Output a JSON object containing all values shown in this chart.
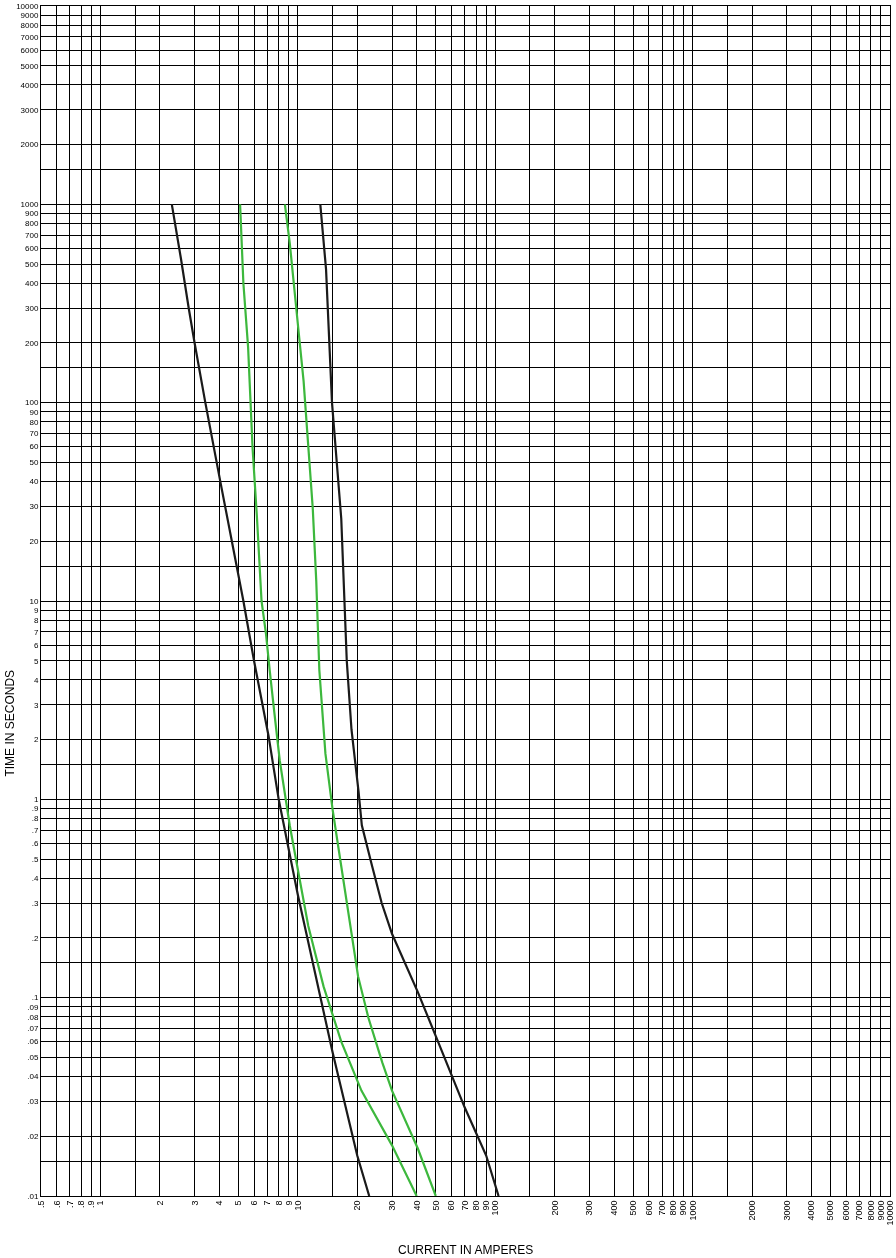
{
  "chart_data": {
    "type": "line",
    "xlabel": "CURRENT IN AMPERES",
    "ylabel": "TIME IN SECONDS",
    "log": "xy",
    "grid": true,
    "xlim": [
      0.5,
      10000
    ],
    "ylim": [
      0.01,
      10000
    ],
    "xticks": [
      {
        "value": 0.5,
        "label": ".5"
      },
      {
        "value": 0.6,
        "label": ".6"
      },
      {
        "value": 0.7,
        "label": ".7"
      },
      {
        "value": 0.8,
        "label": ".8"
      },
      {
        "value": 0.9,
        "label": ".9"
      },
      1,
      {
        "value": 1.5,
        "label": null
      },
      2,
      3,
      4,
      5,
      6,
      7,
      8,
      9,
      10,
      {
        "value": 15,
        "label": null
      },
      20,
      30,
      40,
      50,
      60,
      70,
      80,
      90,
      100,
      {
        "value": 150,
        "label": null
      },
      200,
      300,
      400,
      500,
      600,
      700,
      800,
      900,
      1000,
      {
        "value": 1500,
        "label": null
      },
      2000,
      3000,
      4000,
      5000,
      6000,
      7000,
      8000,
      9000,
      10000
    ],
    "yticks": [
      {
        "value": 0.01,
        "label": ".01"
      },
      {
        "value": 0.015,
        "label": null
      },
      {
        "value": 0.02,
        "label": ".02"
      },
      {
        "value": 0.03,
        "label": ".03"
      },
      {
        "value": 0.04,
        "label": ".04"
      },
      {
        "value": 0.05,
        "label": ".05"
      },
      {
        "value": 0.06,
        "label": ".06"
      },
      {
        "value": 0.07,
        "label": ".07"
      },
      {
        "value": 0.08,
        "label": ".08"
      },
      {
        "value": 0.09,
        "label": ".09"
      },
      {
        "value": 0.1,
        "label": ".1"
      },
      {
        "value": 0.15,
        "label": null
      },
      {
        "value": 0.2,
        "label": ".2"
      },
      {
        "value": 0.3,
        "label": ".3"
      },
      {
        "value": 0.4,
        "label": ".4"
      },
      {
        "value": 0.5,
        "label": ".5"
      },
      {
        "value": 0.6,
        "label": ".6"
      },
      {
        "value": 0.7,
        "label": ".7"
      },
      {
        "value": 0.8,
        "label": ".8"
      },
      {
        "value": 0.9,
        "label": ".9"
      },
      1,
      {
        "value": 1.5,
        "label": null
      },
      2,
      3,
      4,
      5,
      6,
      7,
      8,
      9,
      10,
      {
        "value": 15,
        "label": null
      },
      20,
      30,
      40,
      50,
      60,
      70,
      80,
      90,
      100,
      {
        "value": 150,
        "label": null
      },
      200,
      300,
      400,
      500,
      600,
      700,
      800,
      900,
      1000,
      {
        "value": 1500,
        "label": null
      },
      2000,
      3000,
      4000,
      5000,
      6000,
      7000,
      8000,
      9000,
      10000
    ],
    "series": [
      {
        "color": "#1a1a1a",
        "x": [
          2.3,
          2.56,
          2.8,
          3,
          3.4,
          4.05,
          5.3,
          6.0,
          7.1,
          8.0,
          10,
          15,
          20,
          23
        ],
        "values": [
          1000,
          530,
          300,
          200,
          100,
          40,
          10,
          5,
          2.1,
          1,
          0.33,
          0.053,
          0.016,
          0.01
        ]
      },
      {
        "color": "#3db83d",
        "x": [
          5.1,
          5.3,
          5.6,
          5.9,
          6.2,
          6.55,
          6.9,
          7.2,
          7.6,
          8.1,
          9.1,
          10.1,
          11.3,
          13.5,
          16.6,
          21,
          30,
          40
        ],
        "values": [
          1000,
          400,
          190,
          59,
          27,
          10,
          6.8,
          4.5,
          2.75,
          1.57,
          0.74,
          0.42,
          0.23,
          0.114,
          0.06,
          0.034,
          0.018,
          0.01
        ]
      },
      {
        "color": "#3db83d",
        "x": [
          8.6,
          9.1,
          10,
          10.7,
          11.25,
          11.9,
          12.4,
          12.85,
          13.8,
          15,
          16.6,
          20.2,
          22.8,
          26.8,
          30,
          40.5,
          50
        ],
        "values": [
          1000,
          640,
          250,
          128,
          64,
          29.5,
          12.6,
          4.5,
          1.7,
          0.89,
          0.46,
          0.128,
          0.079,
          0.047,
          0.034,
          0.0174,
          0.01
        ]
      },
      {
        "color": "#1a1a1a",
        "x": [
          13,
          13.9,
          14.9,
          16.6,
          17.7,
          18.7,
          20.3,
          21.1,
          23.8,
          26.6,
          30,
          40.5,
          50,
          70,
          90,
          104
        ],
        "values": [
          1000,
          470,
          100,
          26,
          5,
          2.25,
          1.1,
          0.74,
          0.46,
          0.3,
          0.21,
          0.107,
          0.064,
          0.028,
          0.016,
          0.01
        ]
      }
    ]
  }
}
